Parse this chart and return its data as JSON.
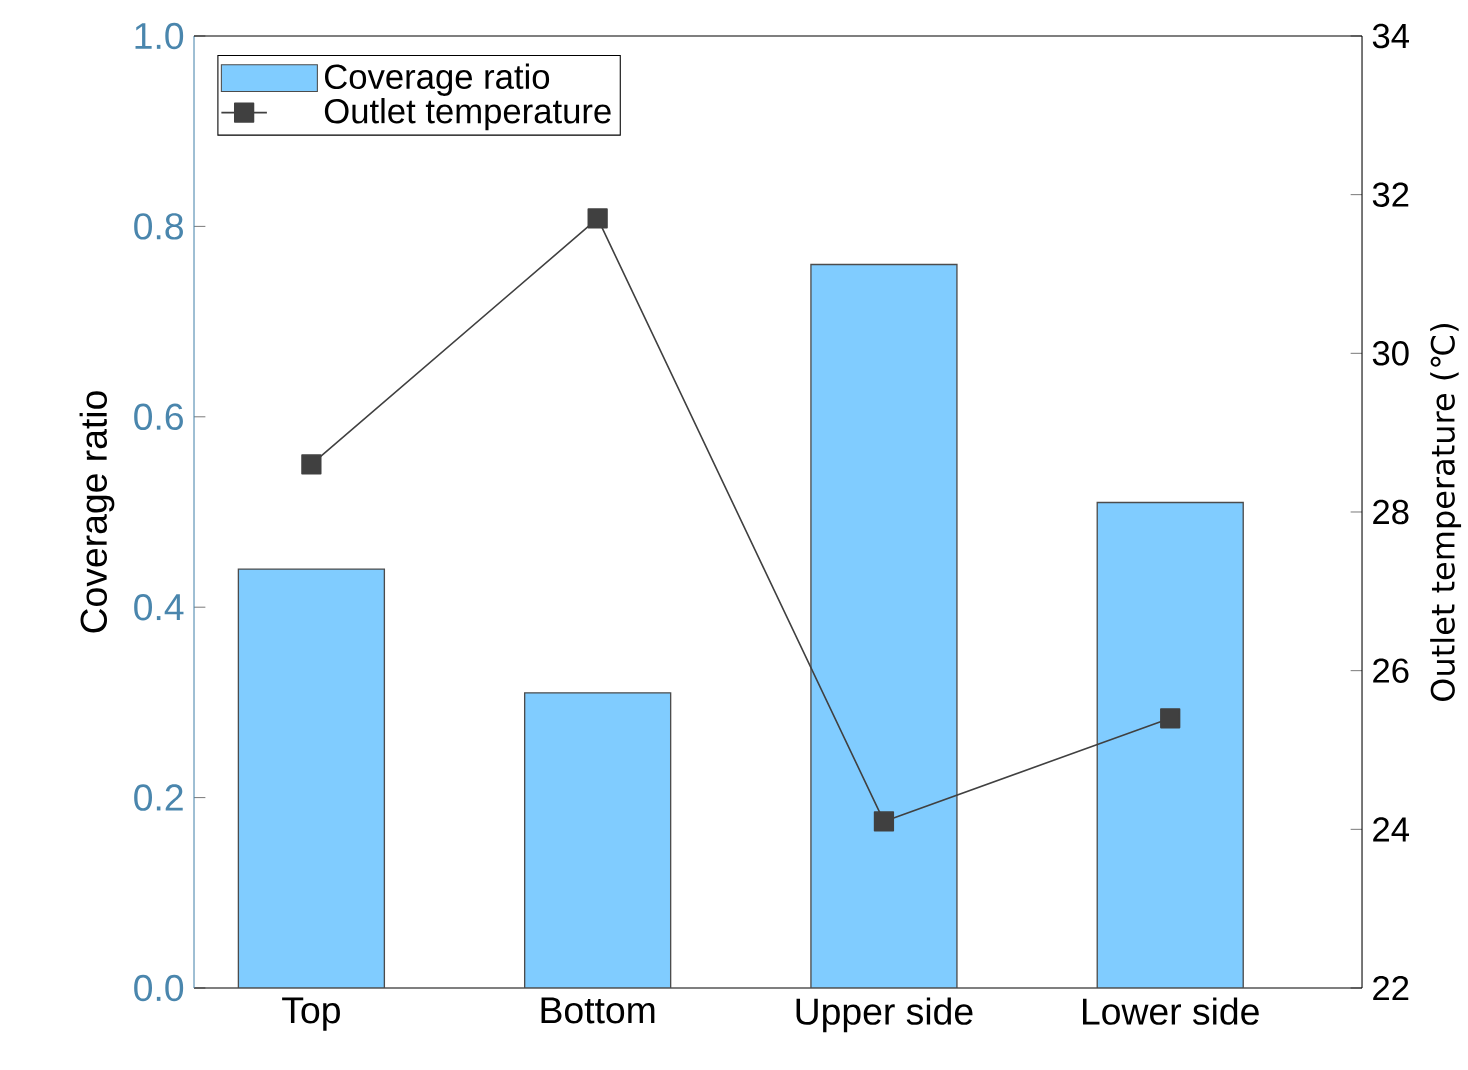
{
  "chart_data": {
    "type": "bar",
    "categories": [
      "Top",
      "Bottom",
      "Upper side",
      "Lower side"
    ],
    "ylabel": "Coverage ratio",
    "y2label": "Outlet temperature (℃)",
    "ylim": [
      0,
      1.0
    ],
    "yticks": [
      {
        "value": 0,
        "label": "0.0"
      },
      0.2,
      0.4,
      0.6,
      0.8,
      {
        "value": 1.0,
        "label": "1.0"
      }
    ],
    "y2lim": [
      22,
      34
    ],
    "y2ticks": [
      22,
      24,
      26,
      28,
      30,
      32,
      34
    ],
    "legend": "top left",
    "marker": "square",
    "line_style": "solid",
    "series": [
      {
        "name": "Coverage ratio",
        "color": "#80ccff",
        "values": [
          0.44,
          0.31,
          0.76,
          0.51
        ]
      },
      {
        "name": "Outlet temperature",
        "type": "line",
        "axis": "y2",
        "color": "#404040",
        "values": [
          28.6,
          31.7,
          24.1,
          25.4
        ]
      }
    ]
  }
}
